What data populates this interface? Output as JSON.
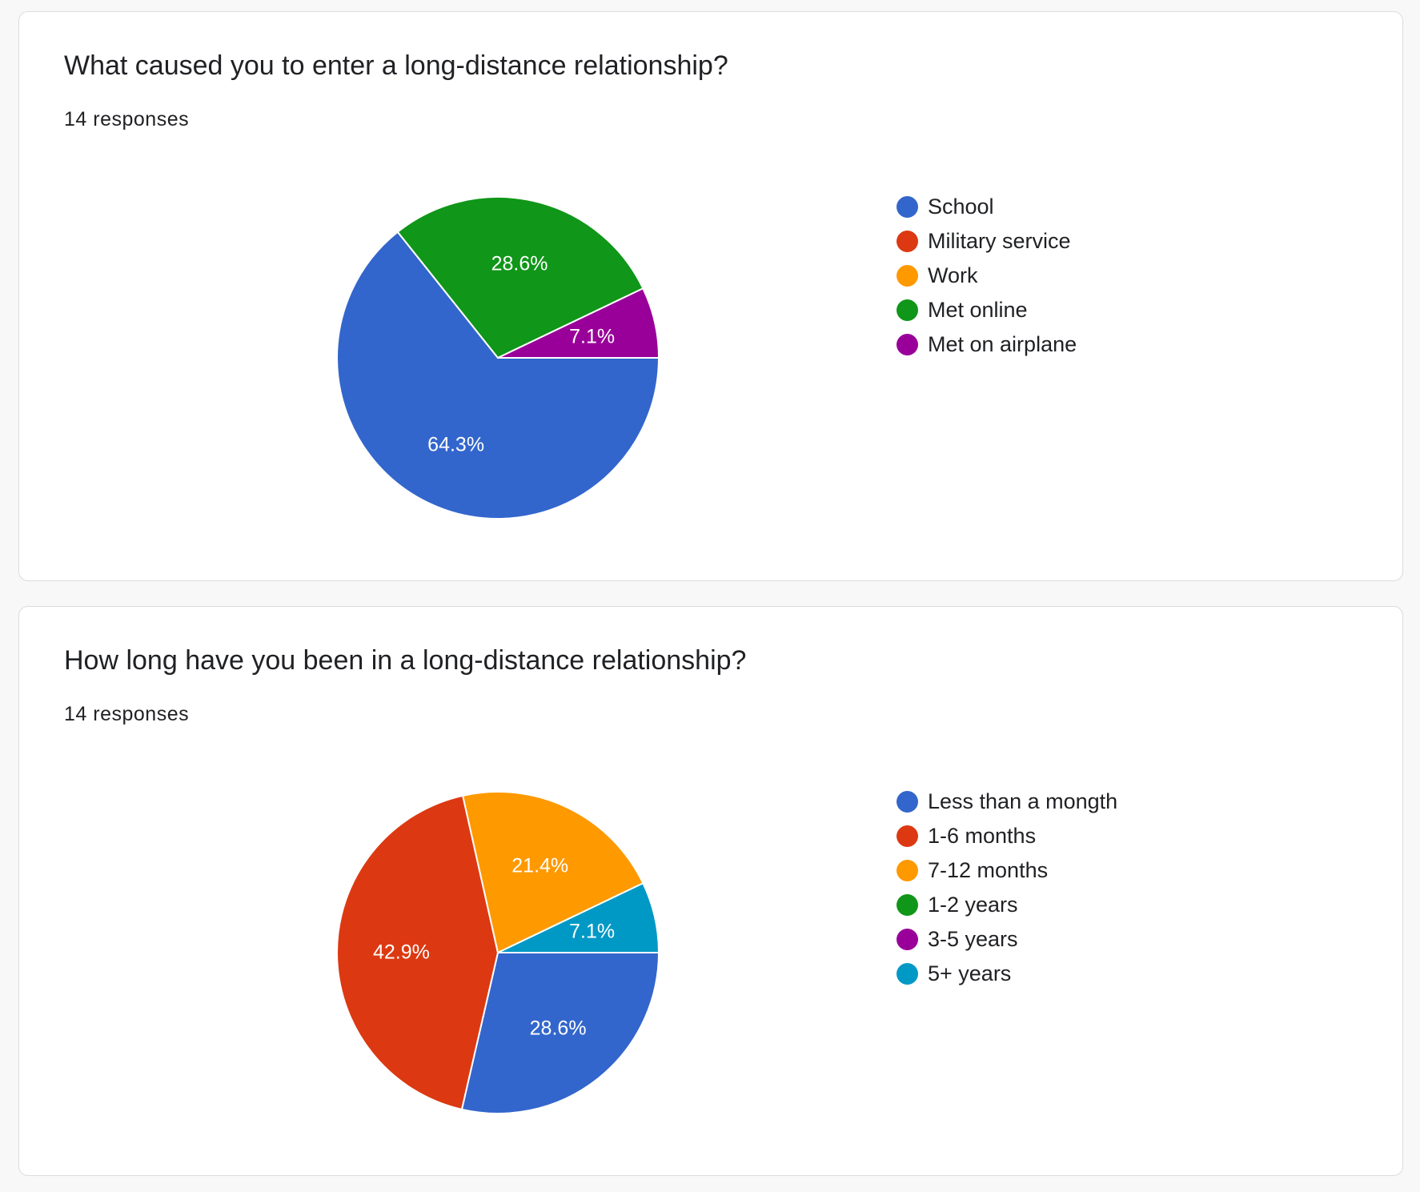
{
  "chart_data": [
    {
      "type": "pie",
      "title": "What caused you to enter a long-distance relationship?",
      "subtitle": "14 responses",
      "categories": [
        "School",
        "Military service",
        "Work",
        "Met online",
        "Met on airplane"
      ],
      "values": [
        64.3,
        0,
        0,
        28.6,
        7.1
      ],
      "labels": [
        "64.3%",
        "",
        "",
        "28.6%",
        "7.1%"
      ],
      "colors": [
        "#3366cc",
        "#dc3912",
        "#ff9900",
        "#109618",
        "#990099"
      ],
      "legend_position": "right"
    },
    {
      "type": "pie",
      "title": "How long have you been in a long-distance relationship?",
      "subtitle": "14 responses",
      "categories": [
        "Less than a mongth",
        "1-6 months",
        "7-12 months",
        "1-2 years",
        "3-5 years",
        "5+ years"
      ],
      "values": [
        28.6,
        42.9,
        21.4,
        0,
        0,
        7.1
      ],
      "labels": [
        "28.6%",
        "42.9%",
        "21.4%",
        "",
        "",
        "7.1%"
      ],
      "colors": [
        "#3366cc",
        "#dc3912",
        "#ff9900",
        "#109618",
        "#990099",
        "#0099c6"
      ],
      "legend_position": "right"
    }
  ]
}
